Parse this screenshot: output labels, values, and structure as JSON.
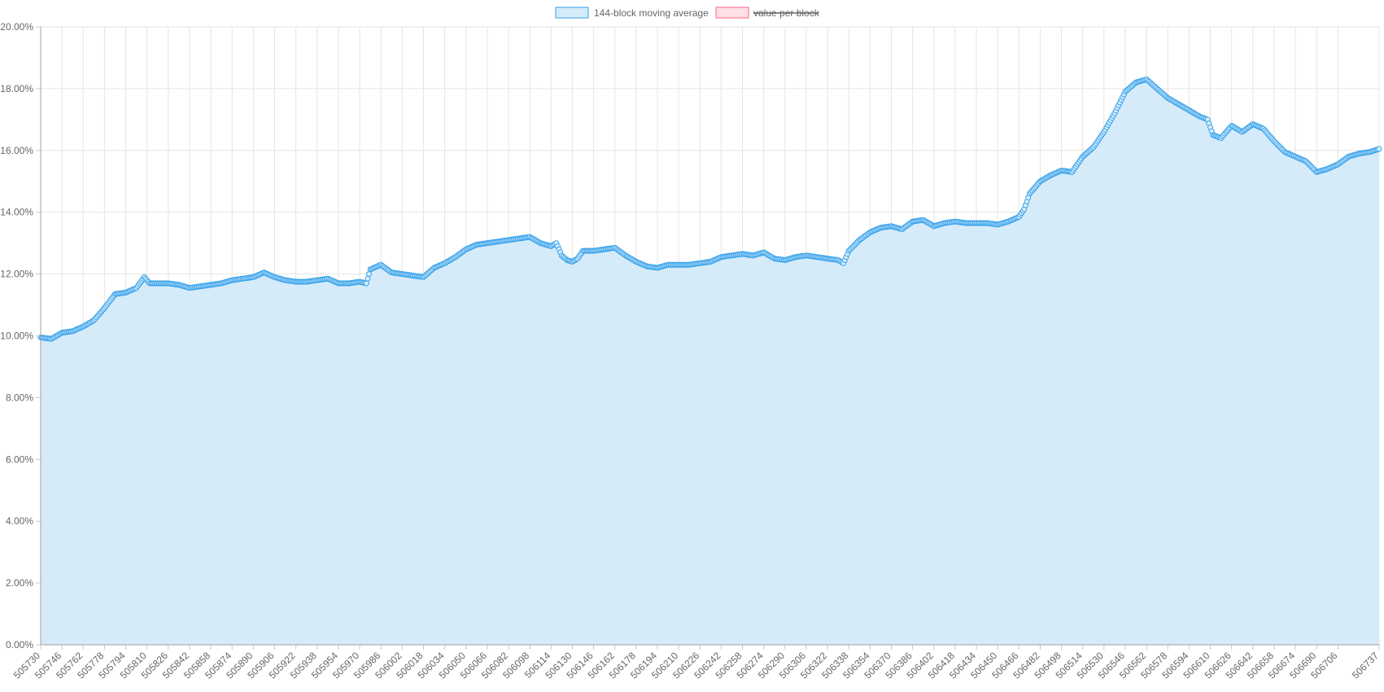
{
  "chart_data": {
    "type": "area",
    "title": "",
    "xlabel": "",
    "ylabel": "",
    "x_min": 505730,
    "x_max": 506737,
    "x_tick_labels": [
      "505730",
      "505746",
      "505762",
      "505778",
      "505794",
      "505810",
      "505826",
      "505842",
      "505858",
      "505874",
      "505890",
      "505906",
      "505922",
      "505938",
      "505954",
      "505970",
      "505986",
      "506002",
      "506018",
      "506034",
      "506050",
      "506066",
      "506082",
      "506098",
      "506114",
      "506130",
      "506146",
      "506162",
      "506178",
      "506194",
      "506210",
      "506226",
      "506242",
      "506258",
      "506274",
      "506290",
      "506306",
      "506322",
      "506338",
      "506354",
      "506370",
      "506386",
      "506402",
      "506418",
      "506434",
      "506450",
      "506466",
      "506482",
      "506498",
      "506514",
      "506530",
      "506546",
      "506562",
      "506578",
      "506594",
      "506610",
      "506626",
      "506642",
      "506658",
      "506674",
      "506690",
      "506706",
      "506737"
    ],
    "y_tick_labels": [
      "0.00%",
      "2.00%",
      "4.00%",
      "6.00%",
      "8.00%",
      "10.00%",
      "12.00%",
      "14.00%",
      "16.00%",
      "18.00%",
      "20.00%"
    ],
    "ylim": [
      0,
      20
    ],
    "grid": true,
    "legend_position": "top",
    "series": [
      {
        "name": "144-block moving average",
        "fill_color": "#d6ebf9",
        "line_color": "#36a2eb",
        "hidden": false,
        "x": [
          505730,
          505738,
          505746,
          505754,
          505762,
          505770,
          505778,
          505786,
          505794,
          505802,
          505808,
          505812,
          505818,
          505826,
          505834,
          505842,
          505850,
          505858,
          505866,
          505874,
          505882,
          505890,
          505898,
          505906,
          505914,
          505922,
          505930,
          505938,
          505946,
          505954,
          505962,
          505970,
          505975,
          505978,
          505986,
          505994,
          506002,
          506010,
          506018,
          506026,
          506034,
          506042,
          506050,
          506058,
          506066,
          506074,
          506082,
          506090,
          506098,
          506106,
          506114,
          506118,
          506122,
          506126,
          506130,
          506134,
          506138,
          506146,
          506154,
          506162,
          506170,
          506178,
          506186,
          506194,
          506202,
          506210,
          506218,
          506226,
          506234,
          506242,
          506250,
          506258,
          506266,
          506274,
          506282,
          506290,
          506298,
          506306,
          506314,
          506322,
          506330,
          506334,
          506338,
          506346,
          506354,
          506362,
          506370,
          506378,
          506386,
          506394,
          506402,
          506410,
          506418,
          506426,
          506434,
          506442,
          506450,
          506458,
          506466,
          506470,
          506474,
          506482,
          506490,
          506498,
          506506,
          506514,
          506522,
          506530,
          506538,
          506546,
          506554,
          506562,
          506570,
          506578,
          506586,
          506594,
          506602,
          506608,
          506612,
          506618,
          506626,
          506634,
          506642,
          506650,
          506658,
          506666,
          506674,
          506682,
          506690,
          506698,
          506706,
          506714,
          506722,
          506730,
          506737
        ],
        "values": [
          9.95,
          9.9,
          10.1,
          10.15,
          10.3,
          10.5,
          10.9,
          11.35,
          11.4,
          11.55,
          11.9,
          11.7,
          11.7,
          11.7,
          11.65,
          11.55,
          11.6,
          11.65,
          11.7,
          11.8,
          11.85,
          11.9,
          12.05,
          11.9,
          11.8,
          11.75,
          11.75,
          11.8,
          11.85,
          11.7,
          11.7,
          11.75,
          11.7,
          12.15,
          12.3,
          12.05,
          12.0,
          11.95,
          11.9,
          12.2,
          12.35,
          12.55,
          12.8,
          12.95,
          13.0,
          13.05,
          13.1,
          13.15,
          13.2,
          13.0,
          12.9,
          13.0,
          12.6,
          12.45,
          12.4,
          12.5,
          12.75,
          12.75,
          12.8,
          12.85,
          12.6,
          12.4,
          12.25,
          12.2,
          12.3,
          12.3,
          12.3,
          12.35,
          12.4,
          12.55,
          12.6,
          12.65,
          12.6,
          12.7,
          12.5,
          12.45,
          12.55,
          12.6,
          12.55,
          12.5,
          12.45,
          12.35,
          12.75,
          13.1,
          13.35,
          13.5,
          13.55,
          13.45,
          13.7,
          13.75,
          13.55,
          13.65,
          13.7,
          13.65,
          13.65,
          13.65,
          13.6,
          13.7,
          13.85,
          14.1,
          14.6,
          15.0,
          15.2,
          15.35,
          15.3,
          15.8,
          16.1,
          16.6,
          17.2,
          17.9,
          18.2,
          18.3,
          18.0,
          17.7,
          17.5,
          17.3,
          17.1,
          17.0,
          16.5,
          16.4,
          16.8,
          16.6,
          16.85,
          16.7,
          16.3,
          15.95,
          15.8,
          15.65,
          15.3,
          15.4,
          15.55,
          15.8,
          15.9,
          15.95,
          16.05
        ]
      },
      {
        "name": "value per block",
        "fill_color": "#ffe0e6",
        "line_color": "#ff6384",
        "hidden": true
      }
    ]
  }
}
